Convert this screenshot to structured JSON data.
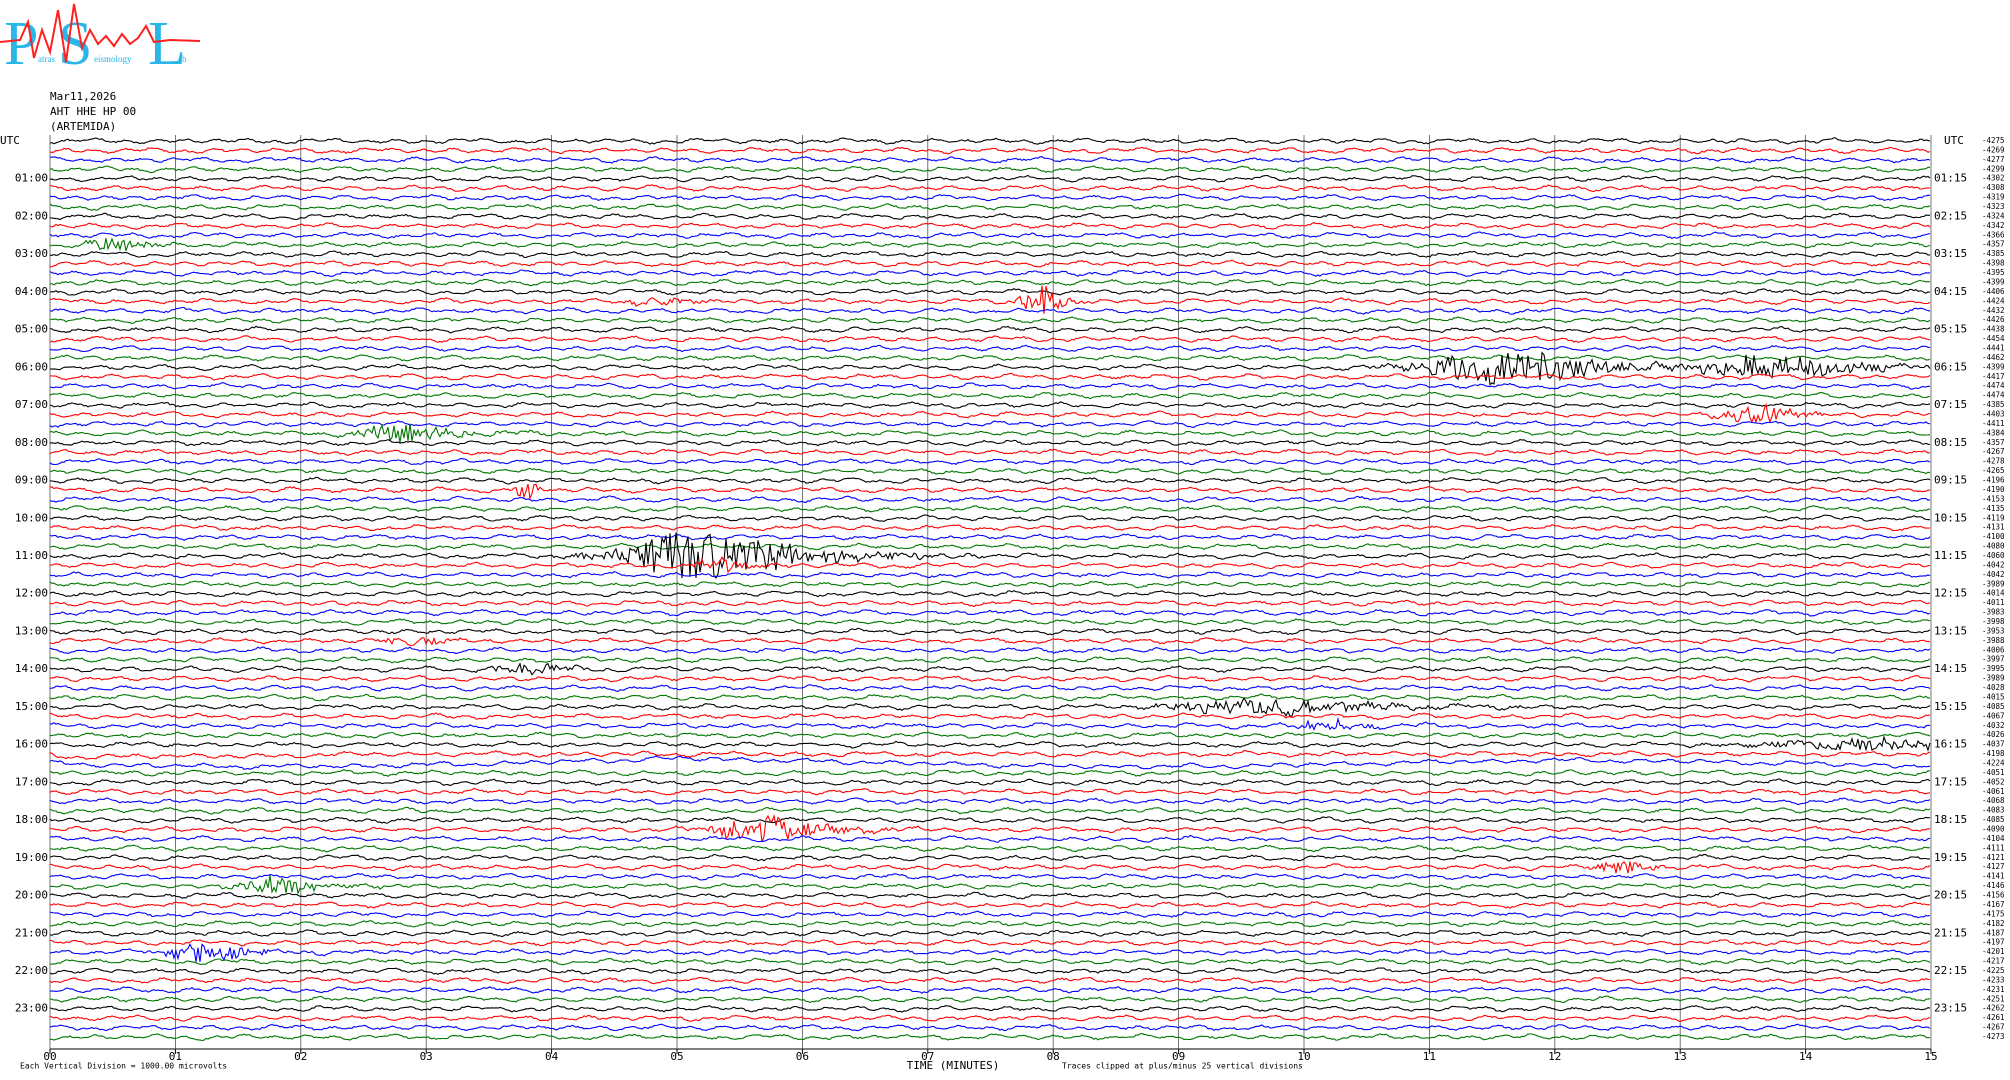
{
  "chart_data": {
    "type": "helicorder",
    "logo": {
      "p": "P",
      "s": "S",
      "l": "L",
      "small": [
        "atras",
        "eismology",
        "ab"
      ]
    },
    "date": "Mar11,2026",
    "station": "AHT HHE HP 00",
    "site": "(ARTEMIDA)",
    "left_labels": [
      "UTC",
      "01:00",
      "02:00",
      "03:00",
      "04:00",
      "05:00",
      "06:00",
      "07:00",
      "08:00",
      "09:00",
      "10:00",
      "11:00",
      "12:00",
      "13:00",
      "14:00",
      "15:00",
      "16:00",
      "17:00",
      "18:00",
      "19:00",
      "20:00",
      "21:00",
      "22:00",
      "23:00"
    ],
    "right_labels": [
      "UTC",
      "01:15",
      "02:15",
      "03:15",
      "04:15",
      "05:15",
      "06:15",
      "07:15",
      "08:15",
      "09:15",
      "10:15",
      "11:15",
      "12:15",
      "13:15",
      "14:15",
      "15:15",
      "16:15",
      "17:15",
      "18:15",
      "19:15",
      "20:15",
      "21:15",
      "22:15",
      "23:15"
    ],
    "right_offsets": [
      -4275,
      -4269,
      -4277,
      -4299,
      -4302,
      -4308,
      -4319,
      -4323,
      -4324,
      -4342,
      -4366,
      -4357,
      -4385,
      -4398,
      -4395,
      -4399,
      -4406,
      -4424,
      -4432,
      -4426,
      -4438,
      -4454,
      -4441,
      -4462,
      -4399,
      -4417,
      -4474,
      -4474,
      -4385,
      -4403,
      -4411,
      -4384,
      -4357,
      -4267,
      -4278,
      -4265,
      -4196,
      -4190,
      -4153,
      -4135,
      -4119,
      -4131,
      -4100,
      -4080,
      -4060,
      -4042,
      -4042,
      -3989,
      -4014,
      -4011,
      -3983,
      -3998,
      -3953,
      -3988,
      -4006,
      -3997,
      -3995,
      -3989,
      -4028,
      -4015,
      -4085,
      -4067,
      -4032,
      -4026,
      -4037,
      -4198,
      -4224,
      -4051,
      -4052,
      -4061,
      -4068,
      -4083,
      -4085,
      -4090,
      -4104,
      -4111,
      -4121,
      -4127,
      -4141,
      -4146,
      -4156,
      -4167,
      -4175,
      -4182,
      -4187,
      -4197,
      -4201,
      -4217,
      -4225,
      -4233,
      -4231,
      -4251,
      -4262,
      -4261,
      -4267,
      -4273
    ],
    "colors": [
      "#000000",
      "#ff0000",
      "#0000ff",
      "#007700"
    ],
    "xlim": [
      0,
      15
    ],
    "xticks": [
      {
        "value": 0,
        "label": "00"
      },
      {
        "value": 1,
        "label": "01"
      },
      {
        "value": 2,
        "label": "02"
      },
      {
        "value": 3,
        "label": "03"
      },
      {
        "value": 4,
        "label": "04"
      },
      {
        "value": 5,
        "label": "05"
      },
      {
        "value": 6,
        "label": "06"
      },
      {
        "value": 7,
        "label": "07"
      },
      {
        "value": 8,
        "label": "08"
      },
      {
        "value": 9,
        "label": "09"
      },
      10,
      11,
      12,
      13,
      14,
      15
    ],
    "xlabel": "TIME (MINUTES)",
    "scale_note": "Each Vertical Division = 1000.00 microvolts",
    "clip_note": "Traces clipped at plus/minus 25 vertical divisions"
  }
}
